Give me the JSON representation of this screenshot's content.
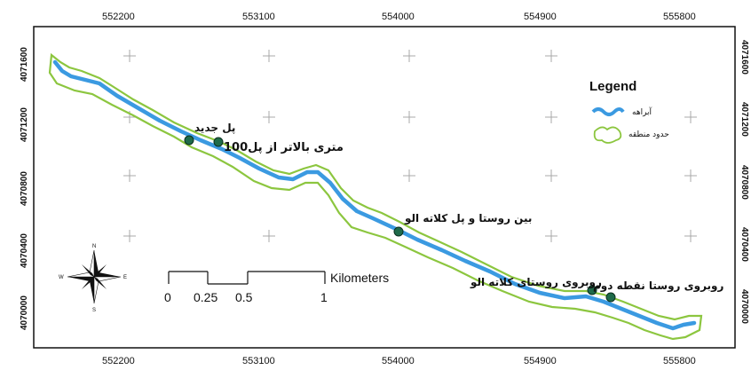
{
  "map": {
    "x_ticks": [
      "552200",
      "553100",
      "554000",
      "554900",
      "555800"
    ],
    "y_ticks": [
      "4071600",
      "4071200",
      "4070800",
      "4070400",
      "4070000"
    ],
    "places": [
      {
        "label": "پل جدید"
      },
      {
        "label": "100متری بالاتر از پل"
      },
      {
        "label": "بین روستا و پل کلاته الو"
      },
      {
        "label": "روبروی روستای کلاته الو"
      },
      {
        "label": "روبروی روستا نقطه دوم"
      }
    ]
  },
  "legend": {
    "title": "Legend",
    "items": [
      {
        "label": "آبراهه",
        "color": "#3b9ae1"
      },
      {
        "label": "حدود منطقه",
        "color": "#8cc63f"
      }
    ]
  },
  "scale_bar": {
    "ticks": [
      "0",
      "0.25",
      "0.5",
      "1"
    ],
    "unit": "Kilometers"
  },
  "north_arrow": {
    "labels": [
      "N",
      "E",
      "S",
      "W"
    ]
  },
  "colors": {
    "stream": "#3b9ae1",
    "boundary": "#8cc63f",
    "point_fill": "#1f6b4a"
  }
}
